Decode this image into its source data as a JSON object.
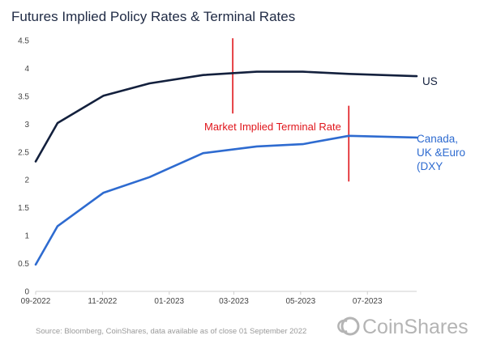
{
  "chart_data": {
    "type": "line",
    "title": "Futures Implied Policy Rates & Terminal Rates",
    "xlabel": "",
    "ylabel": "",
    "x_ticks": [
      "09-2022",
      "11-2022",
      "01-2023",
      "03-2023",
      "05-2023",
      "07-2023"
    ],
    "y_ticks": [
      "0",
      "0.5",
      "1",
      "1.5",
      "2",
      "2.5",
      "3",
      "3.5",
      "4",
      "4.5"
    ],
    "ylim": [
      0,
      4.5
    ],
    "xlim": [
      "2022-09-01",
      "2023-08-15"
    ],
    "grid": false,
    "series": [
      {
        "name": "US",
        "color": "#13203d",
        "points": [
          {
            "x": "2022-09-01",
            "y": 2.33
          },
          {
            "x": "2022-09-21",
            "y": 3.02
          },
          {
            "x": "2022-11-02",
            "y": 3.51
          },
          {
            "x": "2022-12-14",
            "y": 3.73
          },
          {
            "x": "2023-02-01",
            "y": 3.88
          },
          {
            "x": "2023-03-22",
            "y": 3.94
          },
          {
            "x": "2023-05-03",
            "y": 3.94
          },
          {
            "x": "2023-06-14",
            "y": 3.9
          },
          {
            "x": "2023-08-15",
            "y": 3.86
          }
        ]
      },
      {
        "name": "Canada, UK &Euro (DXY",
        "color": "#2e6bd0",
        "points": [
          {
            "x": "2022-09-01",
            "y": 0.48
          },
          {
            "x": "2022-09-21",
            "y": 1.17
          },
          {
            "x": "2022-11-02",
            "y": 1.77
          },
          {
            "x": "2022-12-14",
            "y": 2.05
          },
          {
            "x": "2022-12-30",
            "y": 2.19
          },
          {
            "x": "2023-02-01",
            "y": 2.48
          },
          {
            "x": "2023-03-22",
            "y": 2.6
          },
          {
            "x": "2023-05-03",
            "y": 2.64
          },
          {
            "x": "2023-06-14",
            "y": 2.79
          },
          {
            "x": "2023-08-15",
            "y": 2.76
          }
        ]
      }
    ],
    "annotations": [
      {
        "text": "Market Implied Terminal Rate",
        "color": "#e0151b"
      }
    ],
    "terminal_markers": [
      {
        "x": "2023-02-28",
        "y_range": [
          3.19,
          4.54
        ],
        "color": "#e0151b"
      },
      {
        "x": "2023-06-14",
        "y_range": [
          1.97,
          3.33
        ],
        "color": "#e0151b"
      }
    ]
  },
  "labels": {
    "us": "US",
    "other_lines": [
      "Canada,",
      "UK &Euro",
      "(DXY"
    ]
  },
  "footer": {
    "source": "Source: Bloomberg, CoinShares, data available as of close 01 September 2022",
    "logo": "CoinShares",
    "logo_icon": "coinshares-logo-icon"
  }
}
